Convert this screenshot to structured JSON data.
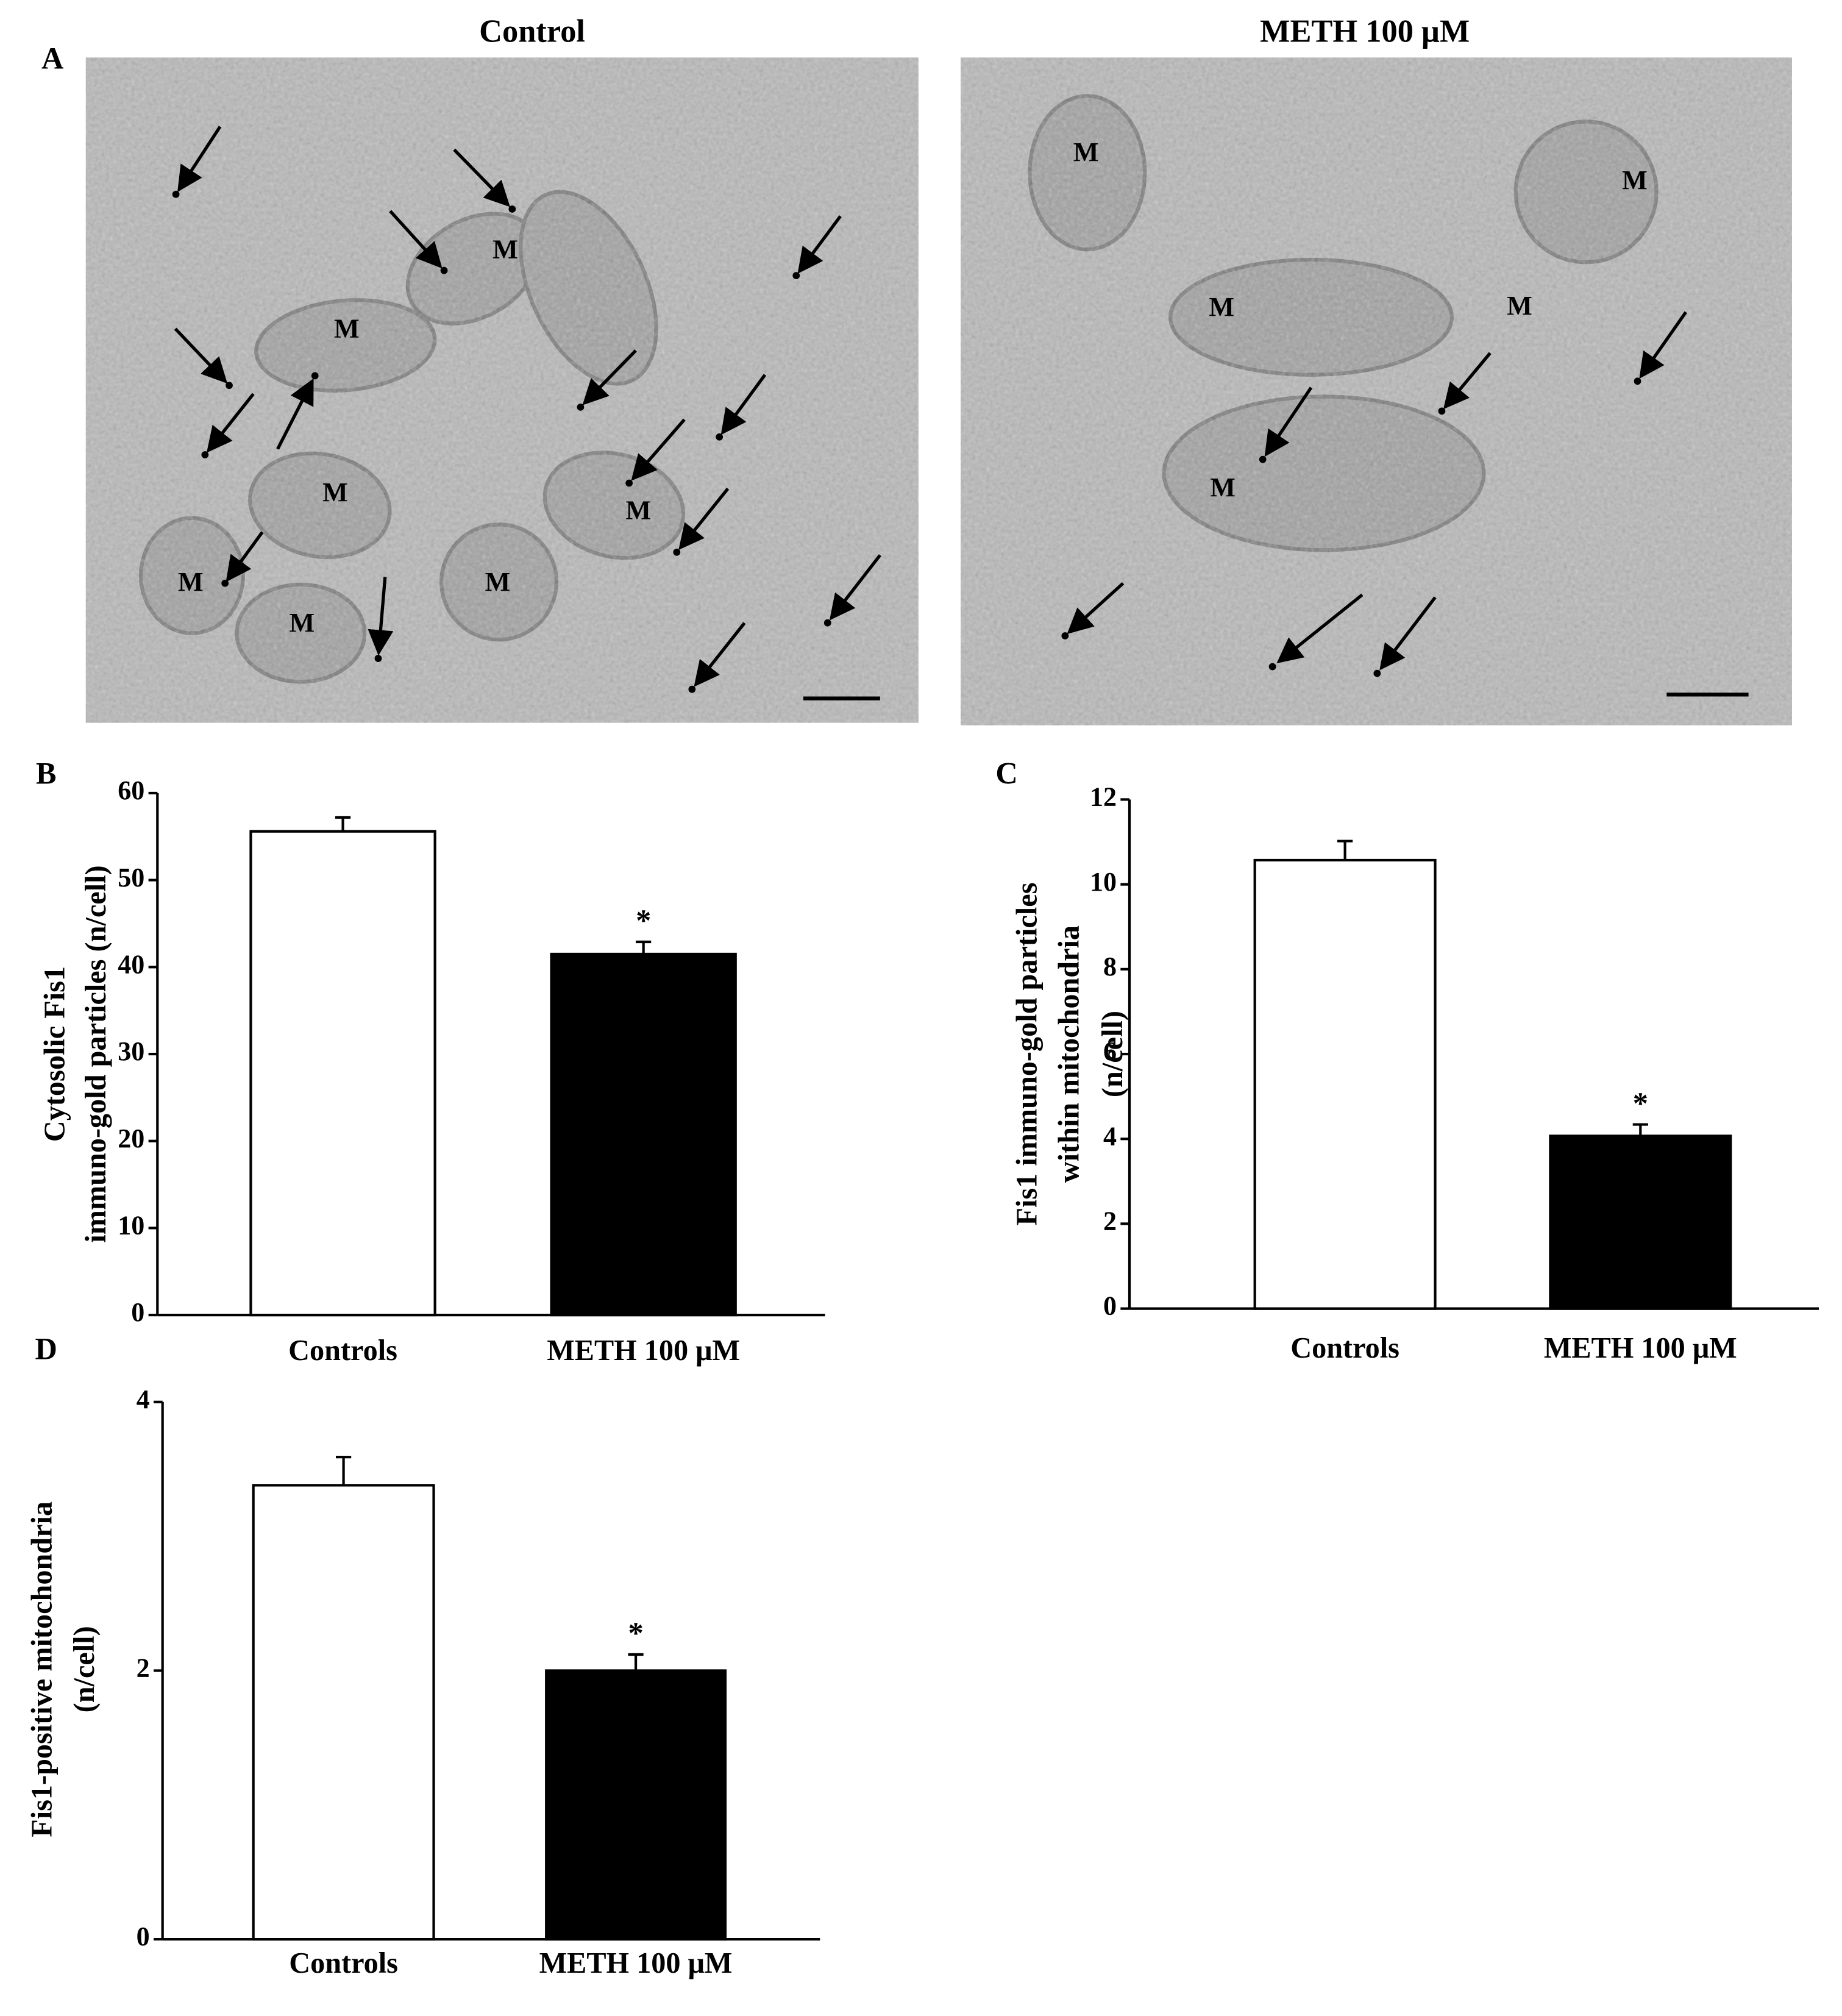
{
  "micrographs": {
    "panel_label": "A",
    "images": [
      {
        "title": "Control",
        "labels": [
          "M",
          "M",
          "M",
          "M",
          "M",
          "M",
          "M"
        ]
      },
      {
        "title": "METH 100 μM",
        "labels": [
          "M",
          "M",
          "M",
          "M",
          "M"
        ]
      }
    ]
  },
  "chart_data": [
    {
      "type": "bar",
      "panel_label": "B",
      "y_label": [
        "Cytosolic Fis1",
        "immuno-gold particles (n/cell)"
      ],
      "categories": [
        "Controls",
        "METH 100 μM"
      ],
      "values": [
        55.6,
        41.5
      ],
      "errors": [
        1.6,
        1.4
      ],
      "colors": [
        "#ffffff",
        "#000000"
      ],
      "ylim": [
        0,
        60
      ],
      "yticks": [
        0,
        10,
        20,
        30,
        40,
        50,
        60
      ],
      "annotations": [
        {
          "category": "METH 100 μM",
          "text": "*"
        }
      ]
    },
    {
      "type": "bar",
      "panel_label": "C",
      "y_label": [
        "Fis1 immuno-gold particles",
        "within mitochondria",
        "(n/cell)"
      ],
      "categories": [
        "Controls",
        "METH 100 μM"
      ],
      "values": [
        10.57,
        4.07
      ],
      "errors": [
        0.45,
        0.27
      ],
      "colors": [
        "#ffffff",
        "#000000"
      ],
      "ylim": [
        0,
        12
      ],
      "yticks": [
        0,
        2,
        4,
        6,
        8,
        10,
        12
      ],
      "annotations": [
        {
          "category": "METH 100 μM",
          "text": "*"
        }
      ]
    },
    {
      "type": "bar",
      "panel_label": "D",
      "y_label": [
        "Fis1-positive mitochondria",
        "(n/cell)"
      ],
      "categories": [
        "Controls",
        "METH 100 μM"
      ],
      "values": [
        3.38,
        2.0
      ],
      "errors": [
        0.21,
        0.12
      ],
      "colors": [
        "#ffffff",
        "#000000"
      ],
      "ylim": [
        0,
        4
      ],
      "yticks": [
        0,
        2,
        4
      ],
      "annotations": [
        {
          "category": "METH 100 μM",
          "text": "*"
        }
      ]
    }
  ]
}
